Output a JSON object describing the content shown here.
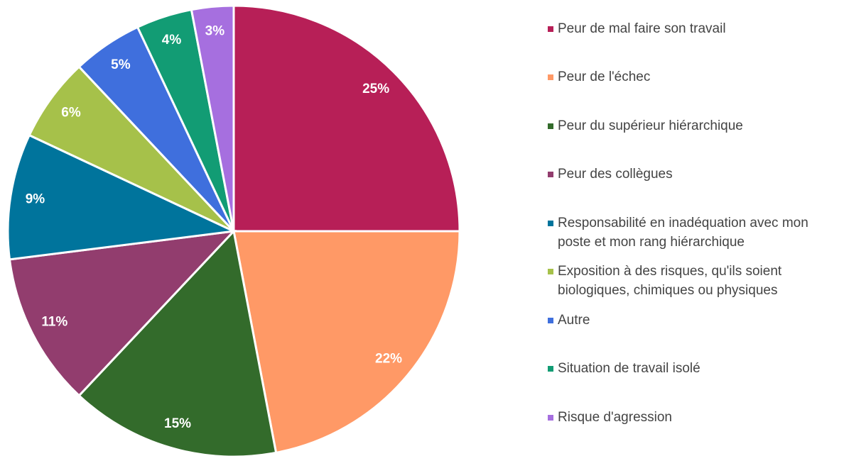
{
  "chart_data": {
    "type": "pie",
    "categories": [
      "Peur de mal faire son travail",
      "Peur de l'échec",
      "Peur du supérieur hiérarchique",
      "Peur des collègues",
      "Responsabilité en inadéquation avec mon poste et mon rang hiérarchique",
      "Exposition à des risques, qu'ils soient biologiques, chimiques ou physiques",
      "Autre",
      "Situation de travail isolé",
      "Risque d'agression"
    ],
    "values": [
      25,
      22,
      15,
      11,
      9,
      6,
      5,
      4,
      3
    ],
    "value_labels": [
      "25%",
      "22%",
      "15%",
      "11%",
      "9%",
      "6%",
      "5%",
      "4%",
      "3%"
    ],
    "colors": [
      "#b71f57",
      "#ff9966",
      "#336b2b",
      "#923d6e",
      "#00749c",
      "#a6c14a",
      "#3f6fdd",
      "#129c74",
      "#a66fdf"
    ],
    "legend": "right"
  }
}
